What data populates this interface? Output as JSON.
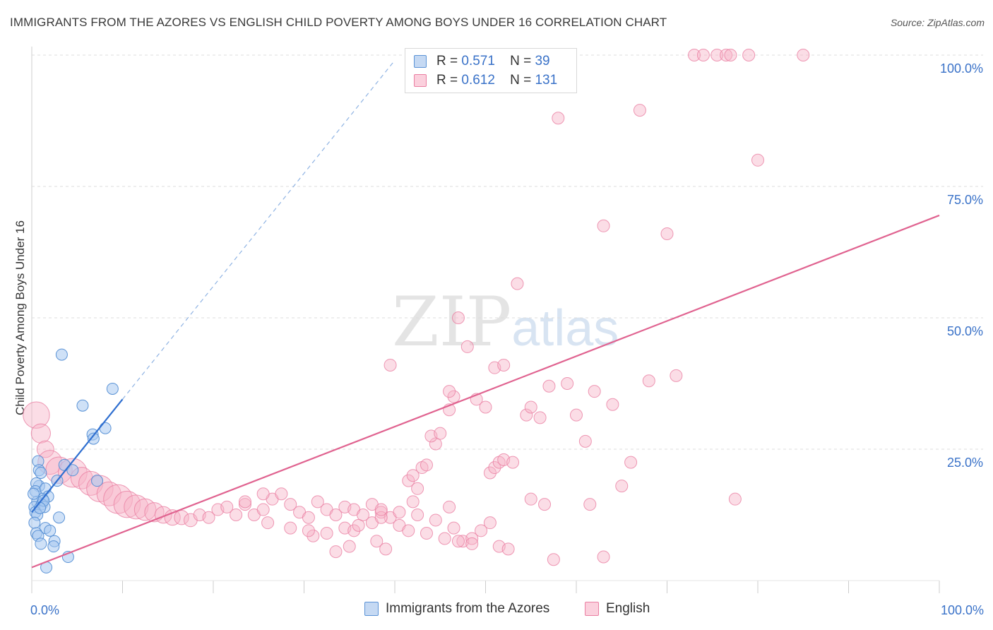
{
  "title": "IMMIGRANTS FROM THE AZORES VS ENGLISH CHILD POVERTY AMONG BOYS UNDER 16 CORRELATION CHART",
  "source": "Source: ZipAtlas.com",
  "watermark": {
    "zip": "ZIP",
    "atlas": "atlas"
  },
  "colors": {
    "blue_fill": "#a8c8f0",
    "blue_stroke": "#5b93d6",
    "blue_line": "#2f6fd0",
    "pink_fill": "#f7b3c8",
    "pink_stroke": "#ea7fa2",
    "pink_line": "#e06390",
    "tick_label": "#3a72c8",
    "grid": "#dcdcdc"
  },
  "legend": {
    "series": [
      {
        "name": "Immigrants from the Azores",
        "r_label": "R =",
        "r_value": "0.571",
        "n_label": "N =",
        "n_value": "39"
      },
      {
        "name": "English",
        "r_label": "R =",
        "r_value": "0.612",
        "n_label": "N =",
        "n_value": "131"
      }
    ]
  },
  "chart_data": {
    "type": "scatter",
    "title": "IMMIGRANTS FROM THE AZORES VS ENGLISH CHILD POVERTY AMONG BOYS UNDER 16 CORRELATION CHART",
    "xlabel": "",
    "ylabel": "Child Poverty Among Boys Under 16",
    "xlim": [
      0,
      100
    ],
    "ylim": [
      0,
      100
    ],
    "x_tick_labels": [
      "0.0%",
      "100.0%"
    ],
    "y_ticks": [
      25,
      50,
      75,
      100
    ],
    "y_tick_labels": [
      "25.0%",
      "50.0%",
      "75.0%",
      "100.0%"
    ],
    "grid": true,
    "series": [
      {
        "name": "Immigrants from the Azores",
        "trendline": {
          "x": [
            0,
            10
          ],
          "y": [
            13.0,
            34.5
          ],
          "dashed_extension_to": [
            40,
            99
          ]
        },
        "points": [
          [
            3.3,
            43
          ],
          [
            8.9,
            36.5
          ],
          [
            5.6,
            33.3
          ],
          [
            6.7,
            27.8
          ],
          [
            6.8,
            27
          ],
          [
            8.1,
            29
          ],
          [
            0.7,
            22.7
          ],
          [
            3.6,
            22
          ],
          [
            0.8,
            21
          ],
          [
            1.0,
            20.5
          ],
          [
            0.8,
            18
          ],
          [
            0.5,
            18.5
          ],
          [
            0.4,
            17
          ],
          [
            1.5,
            17.5
          ],
          [
            1.8,
            16
          ],
          [
            1.2,
            15.5
          ],
          [
            0.6,
            15
          ],
          [
            0.3,
            14
          ],
          [
            1.1,
            14.5
          ],
          [
            1.4,
            14
          ],
          [
            0.4,
            13
          ],
          [
            0.6,
            12.5
          ],
          [
            0.3,
            11
          ],
          [
            1.5,
            10
          ],
          [
            2.0,
            9.5
          ],
          [
            0.5,
            9
          ],
          [
            0.7,
            8.5
          ],
          [
            2.5,
            7.5
          ],
          [
            1.0,
            7
          ],
          [
            2.4,
            6.5
          ],
          [
            4.0,
            4.5
          ],
          [
            1.6,
            2.5
          ],
          [
            0.2,
            16.5
          ],
          [
            2.8,
            19
          ],
          [
            1.3,
            15.2
          ],
          [
            0.9,
            13.8
          ],
          [
            7.2,
            19
          ],
          [
            4.5,
            21
          ],
          [
            3.0,
            12
          ]
        ]
      },
      {
        "name": "English",
        "trendline": {
          "x": [
            0,
            100
          ],
          "y": [
            2.5,
            69.5
          ]
        },
        "points": [
          [
            0.5,
            31.5,
            2.2
          ],
          [
            1.0,
            28,
            1.6
          ],
          [
            1.5,
            25,
            1.4
          ],
          [
            2.0,
            22.5,
            2.0
          ],
          [
            3.0,
            21,
            2.2
          ],
          [
            4.5,
            20.5,
            2.4
          ],
          [
            5.5,
            19.5,
            1.8
          ],
          [
            6.5,
            18.5,
            2.0
          ],
          [
            7.5,
            17.5,
            2.2
          ],
          [
            8.5,
            16.5,
            2.0
          ],
          [
            9.5,
            15.5,
            2.4
          ],
          [
            10.5,
            14.5,
            2.2
          ],
          [
            11.5,
            14,
            2.0
          ],
          [
            12.5,
            13.5,
            1.8
          ],
          [
            13.5,
            13,
            1.6
          ],
          [
            14.5,
            12.5,
            1.4
          ],
          [
            15.5,
            12,
            1.3
          ],
          [
            16.5,
            12,
            1.2
          ],
          [
            17.5,
            11.5,
            1.1
          ],
          [
            18.5,
            12.5,
            1.0
          ],
          [
            19.5,
            12,
            1.0
          ],
          [
            20.5,
            13.5,
            1.0
          ],
          [
            21.5,
            14,
            1.0
          ],
          [
            22.5,
            12.5,
            1.0
          ],
          [
            23.5,
            14.5,
            1.0
          ],
          [
            24.5,
            12.5,
            1.0
          ],
          [
            25.5,
            13.5,
            1.0
          ],
          [
            26.5,
            15.5,
            1.0
          ],
          [
            27.5,
            16.5,
            1.0
          ],
          [
            28.5,
            14.5,
            1.0
          ],
          [
            29.5,
            13,
            1.0
          ],
          [
            30.5,
            12,
            1.0
          ],
          [
            31.5,
            15,
            1.0
          ],
          [
            32.5,
            13.5,
            1.0
          ],
          [
            33.5,
            12.5,
            1.0
          ],
          [
            34.5,
            14,
            1.0
          ],
          [
            35.5,
            13.5,
            1.0
          ],
          [
            36.5,
            12.5,
            1.0
          ],
          [
            37.5,
            14.5,
            1.0
          ],
          [
            38.5,
            13,
            1.0
          ],
          [
            39.5,
            12,
            1.0
          ],
          [
            40.5,
            10.5,
            1.0
          ],
          [
            41.5,
            9.5,
            1.0
          ],
          [
            42.5,
            12.5,
            1.0
          ],
          [
            43.5,
            9,
            1.0
          ],
          [
            44.5,
            11.5,
            1.0
          ],
          [
            45.5,
            8,
            1.0
          ],
          [
            46.5,
            10,
            1.0
          ],
          [
            47.5,
            7.5,
            1.0
          ],
          [
            48.5,
            8,
            1.0
          ],
          [
            49.5,
            9.5,
            1.0
          ],
          [
            50.5,
            11,
            1.0
          ],
          [
            51.5,
            6.5,
            1.0
          ],
          [
            52.5,
            6,
            1.0
          ],
          [
            25.5,
            16.5,
            1.0
          ],
          [
            23.5,
            15,
            1.0
          ],
          [
            26.0,
            11,
            1.0
          ],
          [
            34.5,
            10,
            1.0
          ],
          [
            35.5,
            9.5,
            1.0
          ],
          [
            36.0,
            10.5,
            1.0
          ],
          [
            37.5,
            11,
            1.0
          ],
          [
            38.5,
            12,
            1.0
          ],
          [
            40.5,
            13,
            1.0
          ],
          [
            42.0,
            15,
            1.0
          ],
          [
            43.0,
            21.5,
            1.0
          ],
          [
            44.5,
            26,
            1.0
          ],
          [
            39.5,
            41,
            1.0
          ],
          [
            41.5,
            19,
            1.0
          ],
          [
            42.0,
            20,
            1.0
          ],
          [
            42.5,
            17.5,
            1.0
          ],
          [
            43.5,
            22,
            1.0
          ],
          [
            44.0,
            27.5,
            1.0
          ],
          [
            45.0,
            28,
            1.0
          ],
          [
            46.0,
            32.5,
            1.0
          ],
          [
            46.5,
            35,
            1.0
          ],
          [
            46.0,
            36,
            1.0
          ],
          [
            47.0,
            50,
            1.0
          ],
          [
            48.0,
            44.5,
            1.0
          ],
          [
            49.0,
            34.5,
            1.0
          ],
          [
            50.0,
            33,
            1.0
          ],
          [
            51.0,
            40.5,
            1.0
          ],
          [
            52.0,
            41,
            1.0
          ],
          [
            53.5,
            56.5,
            1.0
          ],
          [
            54.5,
            31.5,
            1.0
          ],
          [
            55.0,
            33,
            1.0
          ],
          [
            56.0,
            31,
            1.0
          ],
          [
            57.0,
            37,
            1.0
          ],
          [
            58.0,
            88,
            1.0
          ],
          [
            59.0,
            37.5,
            1.0
          ],
          [
            60.0,
            31.5,
            1.0
          ],
          [
            61.0,
            26.5,
            1.0
          ],
          [
            62.0,
            36,
            1.0
          ],
          [
            63.0,
            67.5,
            1.0
          ],
          [
            64.0,
            33.5,
            1.0
          ],
          [
            65.0,
            18,
            1.0
          ],
          [
            66.0,
            22.5,
            1.0
          ],
          [
            67.0,
            89.5,
            1.0
          ],
          [
            70.0,
            66,
            1.0
          ],
          [
            68.0,
            38,
            1.0
          ],
          [
            71.0,
            39,
            1.0
          ],
          [
            73.0,
            100,
            1.0
          ],
          [
            74.0,
            100,
            1.0
          ],
          [
            75.5,
            100,
            1.0
          ],
          [
            76.5,
            100,
            1.0
          ],
          [
            77.0,
            100,
            1.0
          ],
          [
            79.0,
            100,
            1.0
          ],
          [
            80.0,
            80,
            1.0
          ],
          [
            85.0,
            100,
            1.0
          ],
          [
            77.5,
            15.5,
            1.0
          ],
          [
            55.0,
            15.5,
            1.0
          ],
          [
            56.5,
            14.5,
            1.0
          ],
          [
            61.5,
            14.5,
            1.0
          ],
          [
            63.0,
            4.5,
            1.0
          ],
          [
            57.5,
            4,
            1.0
          ],
          [
            46.0,
            14,
            1.0
          ],
          [
            47.0,
            7.5,
            1.0
          ],
          [
            48.5,
            7,
            1.0
          ],
          [
            50.5,
            20.5,
            1.0
          ],
          [
            51.0,
            21.5,
            1.0
          ],
          [
            51.5,
            22.5,
            1.0
          ],
          [
            52.0,
            23,
            1.0
          ],
          [
            53.0,
            22.5,
            1.0
          ],
          [
            38.0,
            7.5,
            1.0
          ],
          [
            39.0,
            6,
            1.0
          ],
          [
            38.5,
            13.5,
            1.0
          ],
          [
            35.0,
            6.5,
            1.0
          ],
          [
            33.5,
            5.5,
            1.0
          ],
          [
            32.5,
            9,
            1.0
          ],
          [
            31.0,
            8.5,
            1.0
          ],
          [
            30.5,
            9.5,
            1.0
          ],
          [
            28.5,
            10,
            1.0
          ]
        ]
      }
    ]
  }
}
